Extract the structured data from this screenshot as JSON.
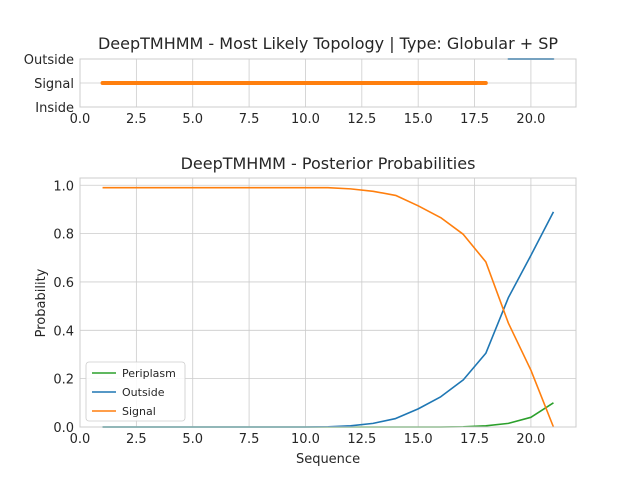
{
  "chart_data": [
    {
      "type": "line",
      "title": "DeepTMHMM - Most Likely Topology | Type: Globular + SP",
      "xlabel": "",
      "ylabel": "",
      "xlim": [
        0,
        22
      ],
      "xticks": [
        0.0,
        2.5,
        5.0,
        7.5,
        10.0,
        12.5,
        15.0,
        17.5,
        20.0
      ],
      "xtick_labels": [
        "0.0",
        "2.5",
        "5.0",
        "7.5",
        "10.0",
        "12.5",
        "15.0",
        "17.5",
        "20.0"
      ],
      "ycategories": [
        "Inside",
        "Signal",
        "Outside"
      ],
      "grid": true,
      "segments": [
        {
          "label": "Signal",
          "start": 1,
          "end": 18,
          "color": "#ff7f0e"
        },
        {
          "label": "Outside",
          "start": 19,
          "end": 21,
          "color": "#1f77b4"
        }
      ]
    },
    {
      "type": "line",
      "title": "DeepTMHMM - Posterior Probabilities",
      "xlabel": "Sequence",
      "ylabel": "Probability",
      "xlim": [
        0,
        22
      ],
      "ylim": [
        0,
        1.03
      ],
      "xticks": [
        0.0,
        2.5,
        5.0,
        7.5,
        10.0,
        12.5,
        15.0,
        17.5,
        20.0
      ],
      "xtick_labels": [
        "0.0",
        "2.5",
        "5.0",
        "7.5",
        "10.0",
        "12.5",
        "15.0",
        "17.5",
        "20.0"
      ],
      "yticks": [
        0.0,
        0.2,
        0.4,
        0.6,
        0.8,
        1.0
      ],
      "ytick_labels": [
        "0.0",
        "0.2",
        "0.4",
        "0.6",
        "0.8",
        "1.0"
      ],
      "grid": true,
      "legend_position": "lower-left",
      "x": [
        1,
        2,
        3,
        4,
        5,
        6,
        7,
        8,
        9,
        10,
        11,
        12,
        13,
        14,
        15,
        16,
        17,
        18,
        19,
        20,
        21
      ],
      "series": [
        {
          "name": "Periplasm",
          "color": "#2ca02c",
          "values": [
            0,
            0,
            0,
            0,
            0,
            0,
            0,
            0,
            0,
            0,
            0,
            0,
            0,
            0,
            0,
            0,
            0.001,
            0.005,
            0.015,
            0.04,
            0.1
          ]
        },
        {
          "name": "Outside",
          "color": "#1f77b4",
          "values": [
            0,
            0,
            0,
            0,
            0,
            0,
            0,
            0,
            0,
            0,
            0.001,
            0.005,
            0.015,
            0.035,
            0.075,
            0.125,
            0.195,
            0.305,
            0.535,
            0.71,
            0.89
          ]
        },
        {
          "name": "Signal",
          "color": "#ff7f0e",
          "values": [
            0.99,
            0.99,
            0.99,
            0.99,
            0.99,
            0.99,
            0.99,
            0.99,
            0.99,
            0.99,
            0.99,
            0.985,
            0.975,
            0.958,
            0.915,
            0.866,
            0.797,
            0.683,
            0.43,
            0.235,
            0.0
          ]
        }
      ]
    }
  ]
}
